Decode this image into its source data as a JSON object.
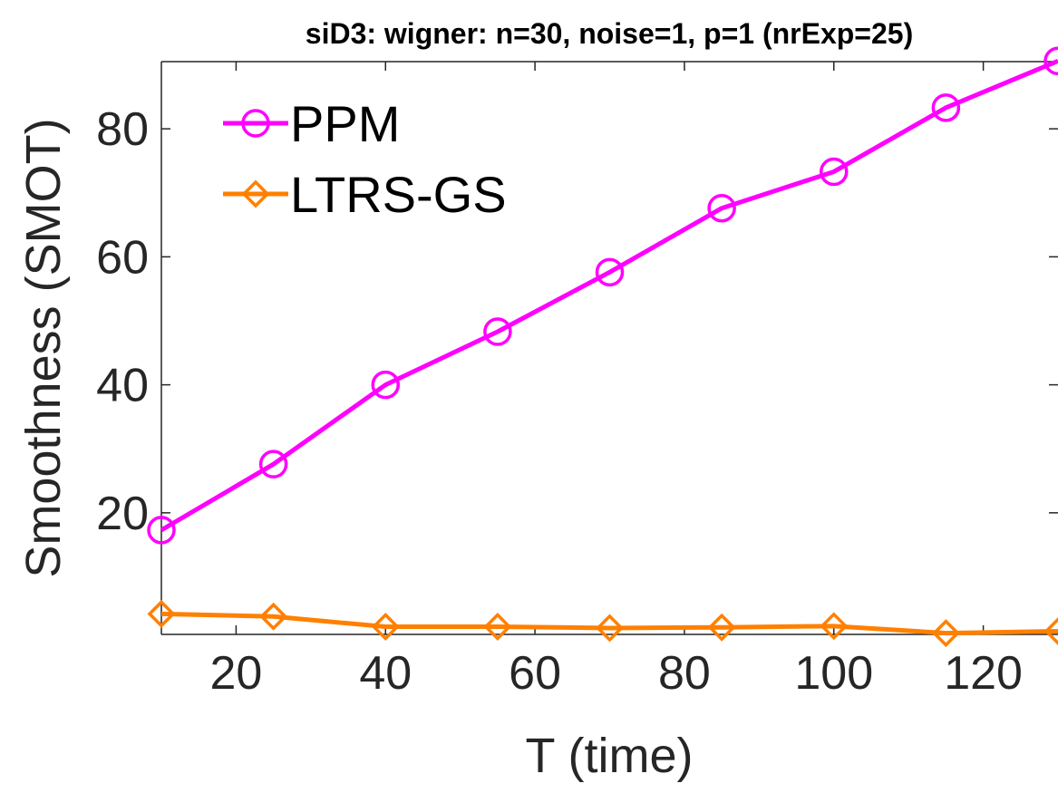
{
  "chart_data": {
    "type": "line",
    "title": "siD3: wigner: n=30, noise=1, p=1 (nrExp=25)",
    "xlabel": "T (time)",
    "ylabel": "Smoothness (SMOT)",
    "xlim": [
      10,
      130
    ],
    "ylim": [
      1,
      90.5
    ],
    "xticks": [
      20,
      40,
      60,
      80,
      100,
      120
    ],
    "yticks": [
      20,
      40,
      60,
      80
    ],
    "grid": false,
    "legend": "top-left",
    "x": [
      10,
      25,
      40,
      55,
      70,
      85,
      100,
      115,
      130
    ],
    "series": [
      {
        "name": "PPM",
        "color": "#ff00ff",
        "marker": "circle",
        "values": [
          17.3,
          27.6,
          40.0,
          48.3,
          57.6,
          67.6,
          73.3,
          83.3,
          90.6
        ]
      },
      {
        "name": "LTRS-GS",
        "color": "#ff8000",
        "marker": "diamond",
        "values": [
          4.2,
          3.8,
          2.2,
          2.2,
          2.0,
          2.1,
          2.3,
          1.2,
          1.5
        ]
      }
    ]
  }
}
